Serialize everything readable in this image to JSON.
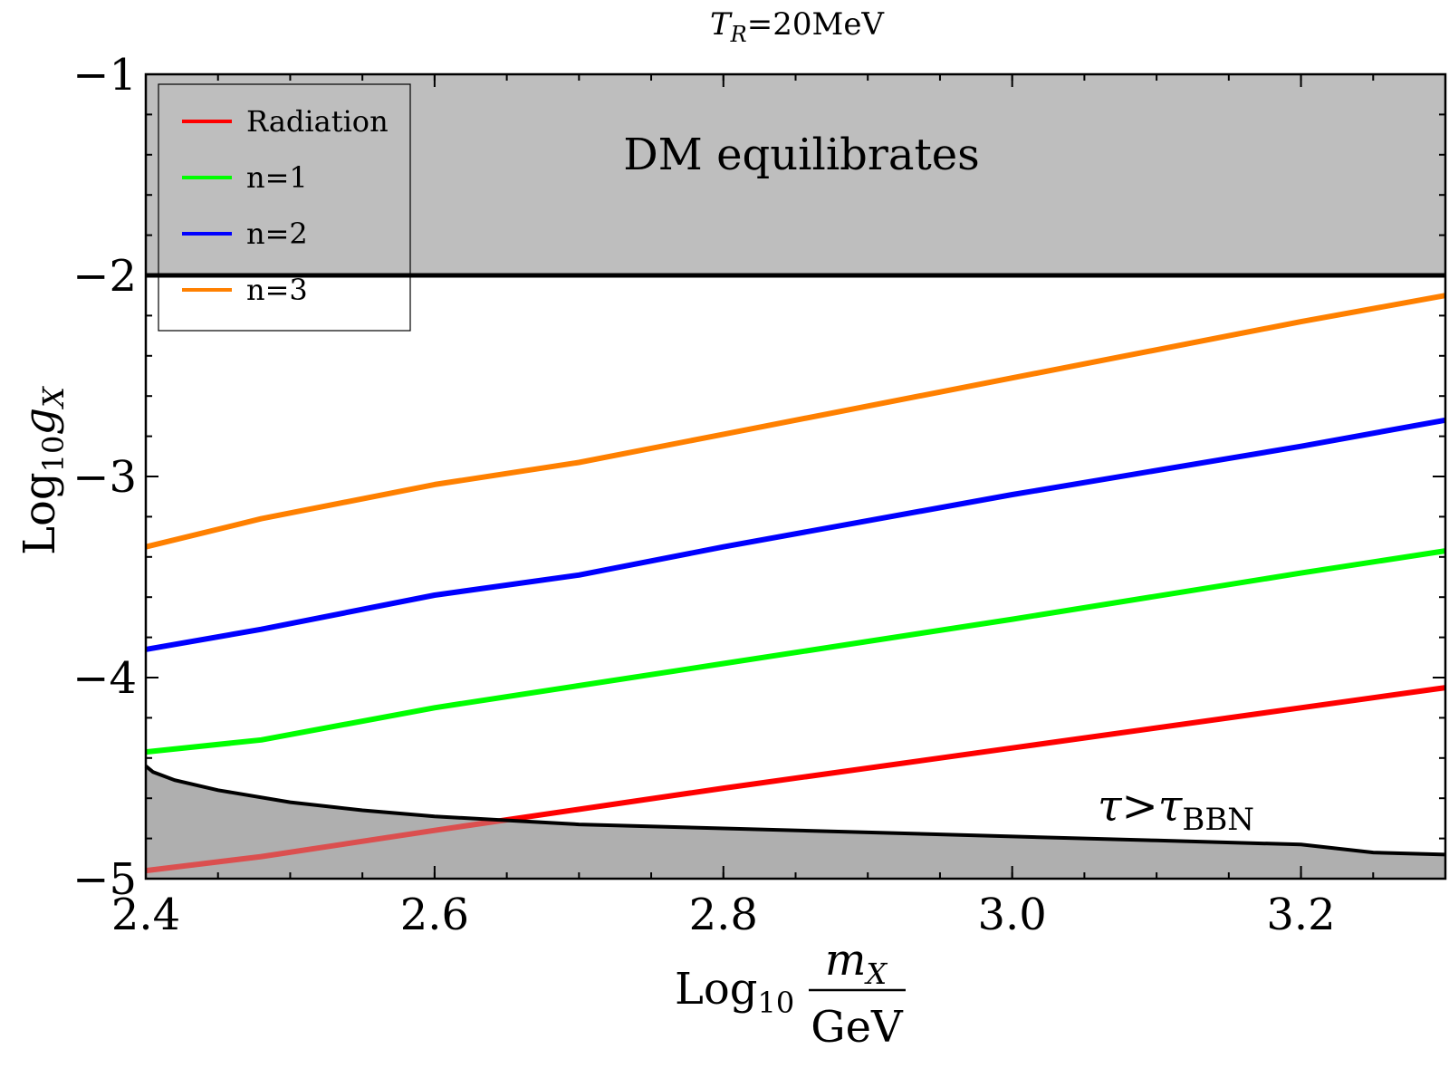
{
  "chart_data": {
    "type": "line",
    "title": {
      "main": "T",
      "sub": "R",
      "rest": "=20MeV"
    },
    "xlabel": {
      "prefix": "Log",
      "sub": "10",
      "numerator": "m",
      "numerator_sub": "X",
      "denominator": "GeV"
    },
    "ylabel": {
      "prefix": "Log",
      "sub": "10",
      "main": "g",
      "main_sub": "X"
    },
    "xlim": [
      2.4,
      3.3
    ],
    "ylim": [
      -5,
      -1
    ],
    "xticks": [
      {
        "value": 2.4,
        "label": "2.4"
      },
      {
        "value": 2.6,
        "label": "2.6"
      },
      {
        "value": 2.8,
        "label": "2.8"
      },
      {
        "value": 3.0,
        "label": "3.0"
      },
      {
        "value": 3.2,
        "label": "3.2"
      }
    ],
    "yticks": [
      {
        "value": -1,
        "label": "−1"
      },
      {
        "value": -2,
        "label": "−2"
      },
      {
        "value": -3,
        "label": "−3"
      },
      {
        "value": -4,
        "label": "−4"
      },
      {
        "value": -5,
        "label": "−5"
      }
    ],
    "legend_position": "top-left",
    "series": [
      {
        "name": "Radiation",
        "color": "#ff0000",
        "x": [
          2.4,
          2.48,
          2.6,
          2.8,
          3.0,
          3.2,
          3.3
        ],
        "y": [
          -4.96,
          -4.89,
          -4.76,
          -4.55,
          -4.35,
          -4.15,
          -4.05
        ]
      },
      {
        "name": "n=1",
        "color": "#00ff00",
        "x": [
          2.4,
          2.48,
          2.6,
          2.8,
          3.0,
          3.2,
          3.3
        ],
        "y": [
          -4.37,
          -4.31,
          -4.15,
          -3.93,
          -3.71,
          -3.48,
          -3.37
        ]
      },
      {
        "name": "n=2",
        "color": "#0000ff",
        "x": [
          2.4,
          2.48,
          2.6,
          2.7,
          2.8,
          3.0,
          3.2,
          3.3
        ],
        "y": [
          -3.86,
          -3.76,
          -3.59,
          -3.49,
          -3.35,
          -3.09,
          -2.85,
          -2.72
        ]
      },
      {
        "name": "n=3",
        "color": "#ff8000",
        "x": [
          2.4,
          2.48,
          2.6,
          2.7,
          2.8,
          3.0,
          3.2,
          3.3
        ],
        "y": [
          -3.35,
          -3.21,
          -3.04,
          -2.93,
          -2.79,
          -2.51,
          -2.23,
          -2.1
        ]
      }
    ],
    "regions": {
      "dm_equilibrates": {
        "label": "DM equilibrates",
        "boundary_y": -2,
        "fill": "#bebebe"
      },
      "bbn": {
        "label": {
          "main": "τ>τ",
          "sub": "BBN"
        },
        "fill": "#b0b0b0",
        "boundary_x": [
          2.4,
          2.405,
          2.42,
          2.45,
          2.5,
          2.55,
          2.6,
          2.7,
          2.8,
          2.9,
          3.0,
          3.1,
          3.2,
          3.25,
          3.3
        ],
        "boundary_y": [
          -4.44,
          -4.47,
          -4.51,
          -4.56,
          -4.62,
          -4.66,
          -4.69,
          -4.73,
          -4.75,
          -4.77,
          -4.79,
          -4.81,
          -4.83,
          -4.87,
          -4.88
        ]
      }
    }
  }
}
